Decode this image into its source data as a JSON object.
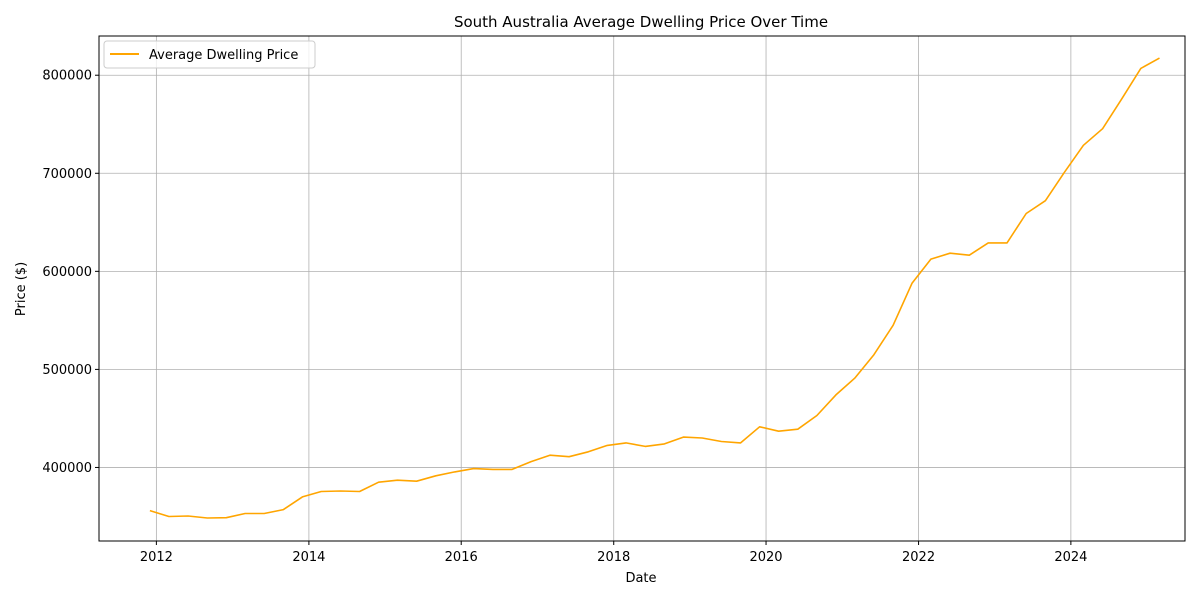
{
  "chart_data": {
    "type": "line",
    "title": "South Australia Average Dwelling Price Over Time",
    "xlabel": "Date",
    "ylabel": "Price ($)",
    "xlim": [
      "2011-04-01",
      "2025-07-01"
    ],
    "ylim": [
      325000,
      840000
    ],
    "x_ticks": [
      "2012",
      "2014",
      "2016",
      "2018",
      "2020",
      "2022",
      "2024"
    ],
    "y_ticks": [
      400000,
      500000,
      600000,
      700000,
      800000
    ],
    "grid": true,
    "legend_position": "top-left",
    "series": [
      {
        "name": "Average Dwelling Price",
        "color": "#ffa500",
        "x": [
          "2011-12-01",
          "2012-03-01",
          "2012-06-01",
          "2012-09-01",
          "2012-12-01",
          "2013-03-01",
          "2013-06-01",
          "2013-09-01",
          "2013-12-01",
          "2014-03-01",
          "2014-06-01",
          "2014-09-01",
          "2014-12-01",
          "2015-03-01",
          "2015-06-01",
          "2015-09-01",
          "2015-12-01",
          "2016-03-01",
          "2016-06-01",
          "2016-09-01",
          "2016-12-01",
          "2017-03-01",
          "2017-06-01",
          "2017-09-01",
          "2017-12-01",
          "2018-03-01",
          "2018-06-01",
          "2018-09-01",
          "2018-12-01",
          "2019-03-01",
          "2019-06-01",
          "2019-09-01",
          "2019-12-01",
          "2020-03-01",
          "2020-06-01",
          "2020-09-01",
          "2020-12-01",
          "2021-03-01",
          "2021-06-01",
          "2021-09-01",
          "2021-12-01",
          "2022-03-01",
          "2022-06-01",
          "2022-09-01",
          "2022-12-01",
          "2023-03-01",
          "2023-06-01",
          "2023-09-01",
          "2023-12-01",
          "2024-03-01",
          "2024-06-01",
          "2024-09-01",
          "2024-12-01",
          "2025-03-01"
        ],
        "values": [
          356000,
          350000,
          350500,
          348500,
          348800,
          353000,
          353000,
          357000,
          370000,
          375500,
          376000,
          375500,
          385000,
          387000,
          386000,
          391500,
          395500,
          398800,
          398000,
          398000,
          406000,
          412500,
          411000,
          416000,
          422500,
          425000,
          421500,
          424000,
          431000,
          430000,
          426500,
          425000,
          441500,
          437000,
          439000,
          453000,
          474000,
          491000,
          515000,
          545000,
          588000,
          612500,
          618500,
          616500,
          629000,
          629000,
          659000,
          672000,
          701000,
          728500,
          745500,
          776000,
          807000,
          817500
        ]
      }
    ]
  }
}
